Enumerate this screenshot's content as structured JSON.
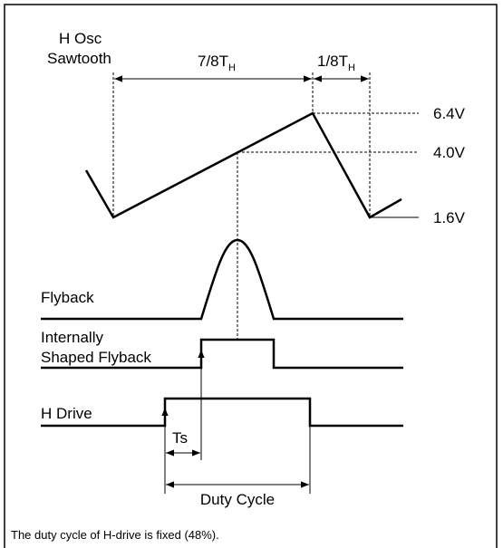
{
  "labels": {
    "h_osc": "H Osc",
    "sawtooth": "Sawtooth",
    "period_78": {
      "main": "7/8T",
      "sub": "H"
    },
    "period_18": {
      "main": "1/8T",
      "sub": "H"
    },
    "v_high": "6.4V",
    "v_mid": "4.0V",
    "v_low": "1.6V",
    "flyback": "Flyback",
    "internally": "Internally",
    "shaped_flyback": "Shaped Flyback",
    "h_drive": "H Drive",
    "ts": "Ts",
    "duty_cycle": "Duty Cycle"
  },
  "caption": "The duty cycle of H-drive is fixed (48%)."
}
